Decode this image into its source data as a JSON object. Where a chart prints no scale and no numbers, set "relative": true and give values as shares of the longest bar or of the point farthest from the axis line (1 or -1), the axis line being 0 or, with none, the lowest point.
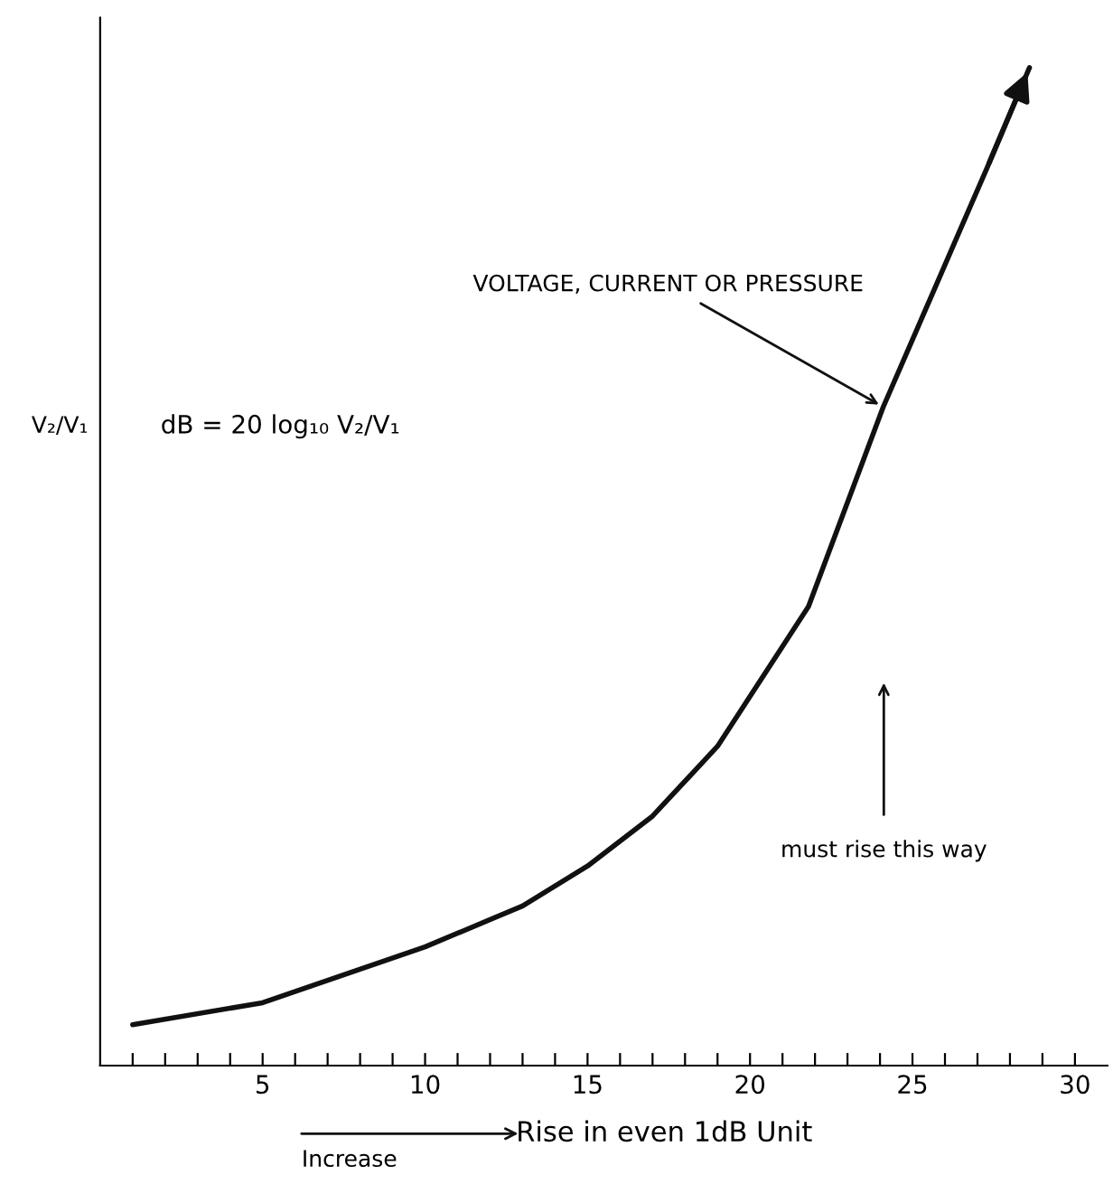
{
  "chart_data": {
    "type": "line",
    "relative": true,
    "xlabel": "Rise in even 1dB Unit",
    "ylabel": "V₂/V₁",
    "x": [
      1,
      5,
      10,
      13,
      15,
      17,
      19,
      21,
      21.8,
      24.1,
      25.7,
      27.3,
      28.6
    ],
    "series": [
      {
        "color": "#111111",
        "values": [
          0.041,
          0.063,
          0.119,
          0.16,
          0.2,
          0.25,
          0.32,
          0.42,
          0.46,
          0.66,
          0.78,
          0.9,
          1.0
        ]
      }
    ],
    "xlim": [
      0,
      31
    ],
    "xticks": [
      {
        "value": 1,
        "label": null
      },
      {
        "value": 2,
        "label": null
      },
      {
        "value": 3,
        "label": null
      },
      {
        "value": 4,
        "label": null
      },
      5,
      {
        "value": 6,
        "label": null
      },
      {
        "value": 7,
        "label": null
      },
      {
        "value": 8,
        "label": null
      },
      {
        "value": 9,
        "label": null
      },
      10,
      {
        "value": 11,
        "label": null
      },
      {
        "value": 12,
        "label": null
      },
      {
        "value": 13,
        "label": null
      },
      {
        "value": 14,
        "label": null
      },
      15,
      {
        "value": 16,
        "label": null
      },
      {
        "value": 17,
        "label": null
      },
      {
        "value": 18,
        "label": null
      },
      {
        "value": 19,
        "label": null
      },
      20,
      {
        "value": 21,
        "label": null
      },
      {
        "value": 22,
        "label": null
      },
      {
        "value": 23,
        "label": null
      },
      {
        "value": 24,
        "label": null
      },
      25,
      {
        "value": 26,
        "label": null
      },
      {
        "value": 27,
        "label": null
      },
      {
        "value": 28,
        "label": null
      },
      {
        "value": 29,
        "label": null
      },
      30
    ],
    "grid": false,
    "annotations": [
      {
        "text": "VOLTAGE, CURRENT OR PRESSURE",
        "x": 24.1,
        "y": 0.66
      },
      "dB = 20 log₁₀ V₂/V₁",
      "must rise this way",
      "Increase"
    ]
  }
}
